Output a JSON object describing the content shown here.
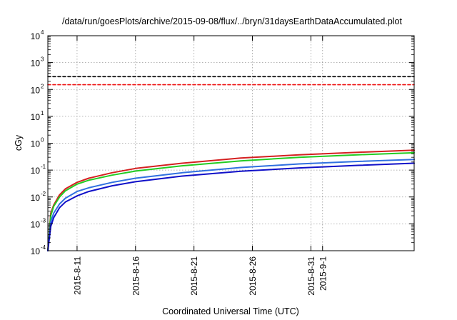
{
  "chart_data": {
    "type": "line",
    "title": "/data/run/goesPlots/archive/2015-09-08/flux/../bryn/31daysEarthDataAccumulated.plot",
    "xlabel": "Coordinated Universal Time (UTC)",
    "ylabel": "cGy",
    "yscale": "log",
    "ylim": [
      0.0001,
      10000
    ],
    "xlim": [
      "2015-08-08T12:00",
      "2015-09-08T20:00"
    ],
    "grid": true,
    "x_tick_labels": [
      "2015-8-11",
      "2015-8-16",
      "2015-8-21",
      "2015-8-26",
      "2015-8-31",
      "2015-9-1"
    ],
    "y_tick_labels": [
      {
        "base": "10",
        "exp": "-4"
      },
      {
        "base": "10",
        "exp": "-3"
      },
      {
        "base": "10",
        "exp": "-2"
      },
      {
        "base": "10",
        "exp": "-1"
      },
      {
        "base": "10",
        "exp": "0"
      },
      {
        "base": "10",
        "exp": "1"
      },
      {
        "base": "10",
        "exp": "2"
      },
      {
        "base": "10",
        "exp": "3"
      },
      {
        "base": "10",
        "exp": "4"
      }
    ],
    "series": [
      {
        "color": "#d42020",
        "style": "solid",
        "x": [
          "2015-08-08T12:00",
          "2015-08-08T18:00",
          "2015-08-09T00:00",
          "2015-08-09T12:00",
          "2015-08-10T00:00",
          "2015-08-11T00:00",
          "2015-08-12T00:00",
          "2015-08-14T00:00",
          "2015-08-16T00:00",
          "2015-08-20T00:00",
          "2015-08-25T00:00",
          "2015-08-30T00:00",
          "2015-09-04T00:00",
          "2015-09-08T20:00"
        ],
        "y": [
          0.0001,
          0.0025,
          0.005,
          0.012,
          0.02,
          0.035,
          0.05,
          0.08,
          0.115,
          0.18,
          0.28,
          0.37,
          0.46,
          0.55
        ]
      },
      {
        "color": "#22cc22",
        "style": "solid",
        "x": [
          "2015-08-08T12:00",
          "2015-08-08T18:00",
          "2015-08-09T00:00",
          "2015-08-09T12:00",
          "2015-08-10T00:00",
          "2015-08-11T00:00",
          "2015-08-12T00:00",
          "2015-08-14T00:00",
          "2015-08-16T00:00",
          "2015-08-20T00:00",
          "2015-08-25T00:00",
          "2015-08-30T00:00",
          "2015-09-04T00:00",
          "2015-09-08T20:00"
        ],
        "y": [
          0.0001,
          0.002,
          0.0045,
          0.01,
          0.017,
          0.03,
          0.042,
          0.065,
          0.092,
          0.145,
          0.22,
          0.3,
          0.37,
          0.44
        ]
      },
      {
        "color": "#3070e0",
        "style": "solid",
        "x": [
          "2015-08-08T12:00",
          "2015-08-08T18:00",
          "2015-08-09T00:00",
          "2015-08-09T12:00",
          "2015-08-10T00:00",
          "2015-08-11T00:00",
          "2015-08-12T00:00",
          "2015-08-14T00:00",
          "2015-08-16T00:00",
          "2015-08-20T00:00",
          "2015-08-25T00:00",
          "2015-08-30T00:00",
          "2015-09-04T00:00",
          "2015-09-08T20:00"
        ],
        "y": [
          0.0001,
          0.0012,
          0.0025,
          0.0055,
          0.009,
          0.016,
          0.022,
          0.035,
          0.05,
          0.08,
          0.125,
          0.17,
          0.21,
          0.25
        ]
      },
      {
        "color": "#1010c8",
        "style": "solid",
        "x": [
          "2015-08-08T12:00",
          "2015-08-08T18:00",
          "2015-08-09T00:00",
          "2015-08-09T12:00",
          "2015-08-10T00:00",
          "2015-08-11T00:00",
          "2015-08-12T00:00",
          "2015-08-14T00:00",
          "2015-08-16T00:00",
          "2015-08-20T00:00",
          "2015-08-25T00:00",
          "2015-08-30T00:00",
          "2015-09-04T00:00",
          "2015-09-08T20:00"
        ],
        "y": [
          0.0001,
          0.0008,
          0.0017,
          0.004,
          0.0065,
          0.011,
          0.016,
          0.026,
          0.037,
          0.06,
          0.09,
          0.12,
          0.15,
          0.18
        ]
      },
      {
        "color": "#000000",
        "style": "dashed",
        "x": [
          "2015-08-08T12:00",
          "2015-09-08T20:00"
        ],
        "y": [
          300,
          300
        ]
      },
      {
        "color": "#ee1111",
        "style": "dashed",
        "x": [
          "2015-08-08T12:00",
          "2015-09-08T20:00"
        ],
        "y": [
          150,
          150
        ]
      }
    ]
  }
}
